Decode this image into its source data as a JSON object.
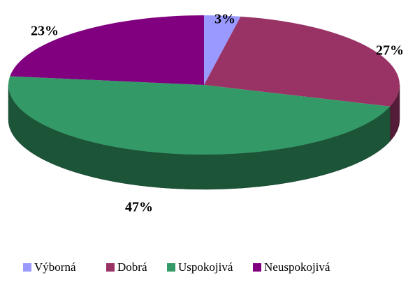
{
  "chart_data": {
    "type": "pie3d",
    "categories": [
      "Výborná",
      "Dobrá",
      "Uspokojivá",
      "Neuspokojivá"
    ],
    "values": [
      3,
      27,
      47,
      23
    ],
    "value_labels": [
      "3%",
      "27%",
      "47%",
      "23%"
    ],
    "colors": [
      "#9999ff",
      "#993366",
      "#339966",
      "#800080"
    ],
    "legend": "bottom"
  }
}
